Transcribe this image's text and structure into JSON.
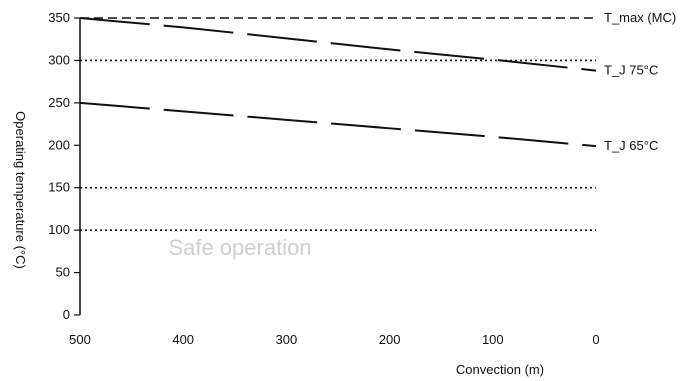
{
  "chart_data": {
    "type": "line",
    "title": "",
    "xlabel": "Convection (m)",
    "ylabel": "Operating temperature (°C)",
    "x_ticks": [
      "500",
      "400",
      "300",
      "200",
      "100",
      "0"
    ],
    "y_ticks": [
      "0",
      "50",
      "100",
      "150",
      "200",
      "250",
      "300",
      "350"
    ],
    "xlim": [
      500,
      0
    ],
    "ylim": [
      0,
      350
    ],
    "grid": false,
    "reference_lines": [
      {
        "y": 350,
        "style": "dashed"
      },
      {
        "y": 300,
        "style": "dotted"
      },
      {
        "y": 150,
        "style": "dotted"
      },
      {
        "y": 100,
        "style": "dotted"
      }
    ],
    "series": [
      {
        "name": "T_max (MC)",
        "style": "dashed",
        "x": [
          500,
          0
        ],
        "y": [
          350,
          350
        ]
      },
      {
        "name": "T_J 75°C",
        "style": "long-dash",
        "x": [
          500,
          400,
          300,
          200,
          100,
          0
        ],
        "y": [
          350,
          339,
          326,
          313,
          301,
          288
        ]
      },
      {
        "name": "T_J 65°C",
        "style": "long-dash",
        "x": [
          500,
          400,
          300,
          200,
          100,
          0
        ],
        "y": [
          250,
          240,
          230,
          220,
          210,
          199
        ]
      }
    ],
    "annotation": "Safe operation",
    "colors": {
      "line": "#111111",
      "annotation": "#cfcfcf"
    }
  }
}
